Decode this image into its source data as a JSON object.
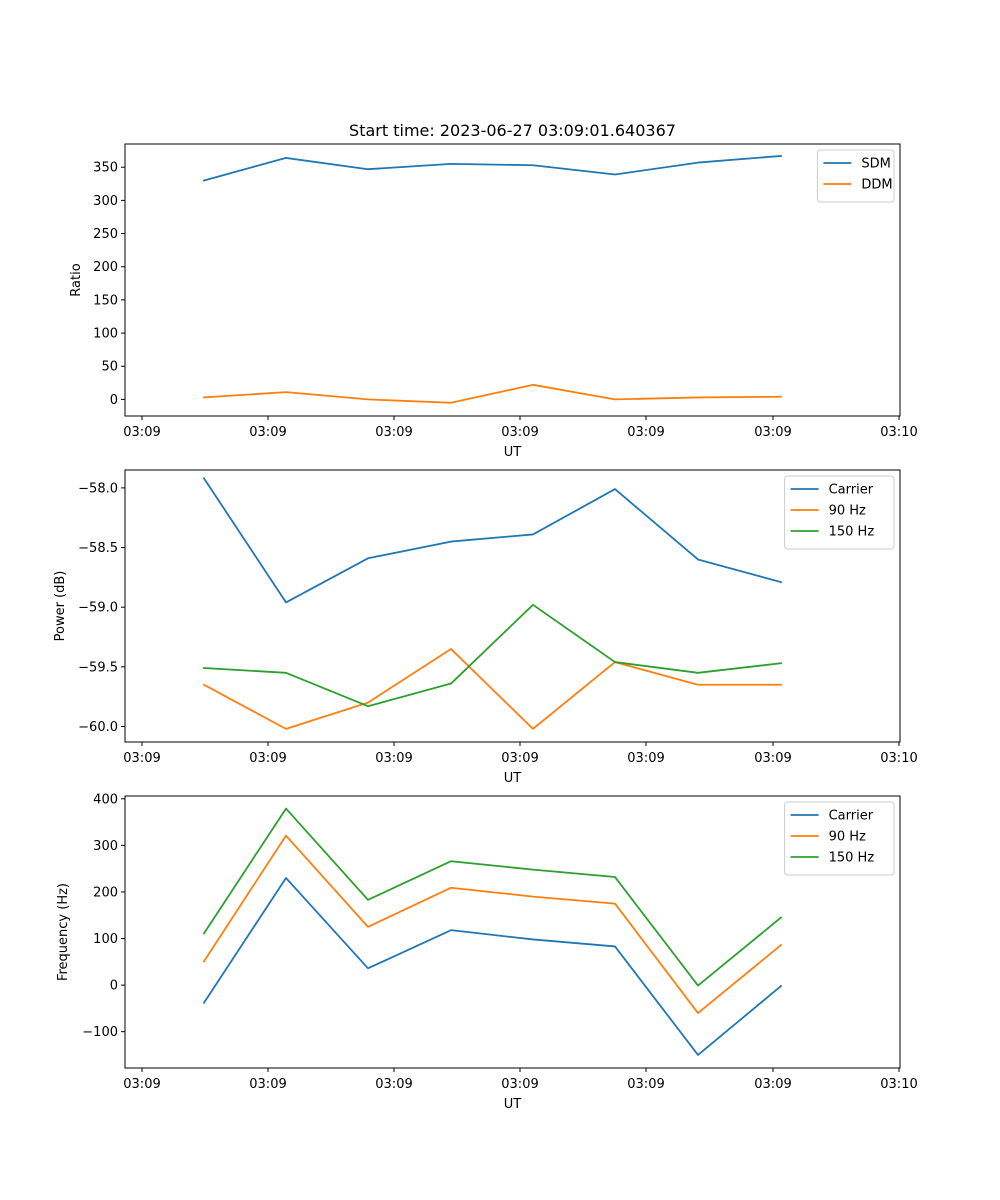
{
  "figure": {
    "title": "Start time: 2023-06-27 03:09:01.640367"
  },
  "chart_data": [
    {
      "type": "line",
      "xlabel": "UT",
      "ylabel": "Ratio",
      "x_tick_labels": [
        "03:09",
        "03:09",
        "03:09",
        "03:09",
        "03:09",
        "03:09",
        "03:09",
        "03:10"
      ],
      "y_ticks": [
        0,
        50,
        100,
        150,
        200,
        250,
        300,
        350
      ],
      "ylim": [
        -25,
        385
      ],
      "grid": false,
      "legend_position": "top-right",
      "series": [
        {
          "name": "SDM",
          "color": "#1f77b4",
          "values": [
            330,
            364,
            347,
            355,
            353,
            339,
            357,
            367
          ]
        },
        {
          "name": "DDM",
          "color": "#ff7f0e",
          "values": [
            3,
            11,
            0,
            -5,
            22,
            0,
            3,
            4
          ]
        }
      ]
    },
    {
      "type": "line",
      "xlabel": "UT",
      "ylabel": "Power (dB)",
      "x_tick_labels": [
        "03:09",
        "03:09",
        "03:09",
        "03:09",
        "03:09",
        "03:09",
        "03:09",
        "03:10"
      ],
      "y_ticks": [
        -60.0,
        -59.5,
        -59.0,
        -58.5,
        -58.0
      ],
      "y_tick_labels": [
        "−60.0",
        "−59.5",
        "−59.0",
        "−58.5",
        "−58.0"
      ],
      "ylim": [
        -60.13,
        -57.85
      ],
      "grid": false,
      "legend_position": "top-right",
      "series": [
        {
          "name": "Carrier",
          "color": "#1f77b4",
          "values": [
            -57.92,
            -58.96,
            -58.59,
            -58.45,
            -58.39,
            -58.01,
            -58.6,
            -58.79
          ]
        },
        {
          "name": "90 Hz",
          "color": "#ff7f0e",
          "values": [
            -59.65,
            -60.02,
            -59.8,
            -59.35,
            -60.02,
            -59.46,
            -59.65,
            -59.65
          ]
        },
        {
          "name": "150 Hz",
          "color": "#2ca02c",
          "values": [
            -59.51,
            -59.55,
            -59.83,
            -59.64,
            -58.98,
            -59.46,
            -59.55,
            -59.47
          ]
        }
      ]
    },
    {
      "type": "line",
      "xlabel": "UT",
      "ylabel": "Frequency (Hz)",
      "x_tick_labels": [
        "03:09",
        "03:09",
        "03:09",
        "03:09",
        "03:09",
        "03:09",
        "03:09",
        "03:10"
      ],
      "y_ticks": [
        -100,
        0,
        100,
        200,
        300,
        400
      ],
      "y_tick_labels": [
        "−100",
        "0",
        "100",
        "200",
        "300",
        "400"
      ],
      "ylim": [
        -178,
        406
      ],
      "grid": false,
      "legend_position": "top-right",
      "series": [
        {
          "name": "Carrier",
          "color": "#1f77b4",
          "values": [
            -38,
            230,
            36,
            118,
            98,
            83,
            -150,
            -2
          ]
        },
        {
          "name": "90 Hz",
          "color": "#ff7f0e",
          "values": [
            51,
            321,
            125,
            209,
            190,
            175,
            -60,
            86
          ]
        },
        {
          "name": "150 Hz",
          "color": "#2ca02c",
          "values": [
            111,
            379,
            183,
            266,
            248,
            232,
            -1,
            145
          ]
        }
      ]
    }
  ]
}
